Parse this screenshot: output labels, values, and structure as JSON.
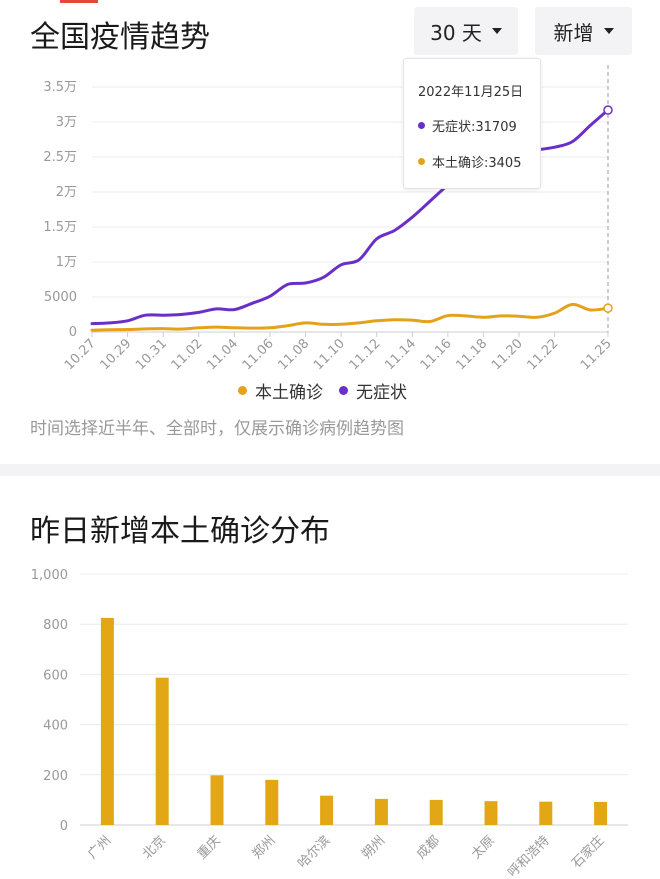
{
  "trend": {
    "title": "全国疫情趋势",
    "period_label": "30 天",
    "mode_label": "新增",
    "note": "时间选择近半年、全部时，仅展示确诊病例趋势图",
    "tooltip": {
      "date": "2022年11月25日",
      "rows": [
        {
          "label": "无症状:31709",
          "color": "#6a2fc7"
        },
        {
          "label": "本土确诊:3405",
          "color": "#e3a21a"
        }
      ]
    },
    "legend": [
      {
        "label": "本土确诊",
        "color": "#e3a21a"
      },
      {
        "label": "无症状",
        "color": "#6a2fc7"
      }
    ]
  },
  "distribution": {
    "title": "昨日新增本土确诊分布",
    "bar_color": "#e3a716"
  },
  "chart_data": [
    {
      "type": "line",
      "ylim": [
        0,
        35000
      ],
      "y_ticks": [
        {
          "value": 0,
          "label": "0"
        },
        {
          "value": 5000,
          "label": "5000"
        },
        {
          "value": 10000,
          "label": "1万"
        },
        {
          "value": 15000,
          "label": "1.5万"
        },
        {
          "value": 20000,
          "label": "2万"
        },
        {
          "value": 25000,
          "label": "2.5万"
        },
        {
          "value": 30000,
          "label": "3万"
        },
        {
          "value": 35000,
          "label": "3.5万"
        }
      ],
      "x_tick_labels": [
        "10.27",
        "10.29",
        "10.31",
        "11.02",
        "11.04",
        "11.06",
        "11.08",
        "11.10",
        "11.12",
        "11.14",
        "11.16",
        "11.18",
        "11.20",
        "11.22",
        "11.25"
      ],
      "x": [
        "10.27",
        "10.28",
        "10.29",
        "10.30",
        "10.31",
        "11.01",
        "11.02",
        "11.03",
        "11.04",
        "11.05",
        "11.06",
        "11.07",
        "11.08",
        "11.09",
        "11.10",
        "11.11",
        "11.12",
        "11.13",
        "11.14",
        "11.15",
        "11.16",
        "11.17",
        "11.18",
        "11.19",
        "11.20",
        "11.21",
        "11.22",
        "11.23",
        "11.24",
        "11.25"
      ],
      "series": [
        {
          "name": "本土确诊",
          "color": "#e3a21a",
          "values": [
            250,
            320,
            350,
            450,
            480,
            420,
            600,
            700,
            600,
            550,
            600,
            900,
            1300,
            1100,
            1100,
            1300,
            1600,
            1750,
            1700,
            1500,
            2350,
            2300,
            2100,
            2300,
            2250,
            2100,
            2700,
            3950,
            3150,
            3405
          ]
        },
        {
          "name": "无症状",
          "color": "#6a2fc7",
          "values": [
            1200,
            1300,
            1600,
            2400,
            2400,
            2500,
            2800,
            3300,
            3200,
            4100,
            5100,
            6800,
            7000,
            7800,
            9600,
            10300,
            13300,
            14500,
            16400,
            18700,
            21000,
            23000,
            22600,
            22400,
            25400,
            26000,
            26400,
            27200,
            29500,
            31709
          ]
        }
      ]
    },
    {
      "type": "bar",
      "title": "昨日新增本土确诊分布",
      "ylim": [
        0,
        1000
      ],
      "y_ticks": [
        {
          "value": 0,
          "label": "0"
        },
        {
          "value": 200,
          "label": "200"
        },
        {
          "value": 400,
          "label": "400"
        },
        {
          "value": 600,
          "label": "600"
        },
        {
          "value": 800,
          "label": "800"
        },
        {
          "value": 1000,
          "label": "1,000"
        }
      ],
      "categories": [
        "广州",
        "北京",
        "重庆",
        "郑州",
        "哈尔滨",
        "朔州",
        "成都",
        "太原",
        "呼和浩特",
        "石家庄"
      ],
      "values": [
        825,
        587,
        198,
        180,
        117,
        104,
        100,
        95,
        93,
        92
      ]
    }
  ]
}
